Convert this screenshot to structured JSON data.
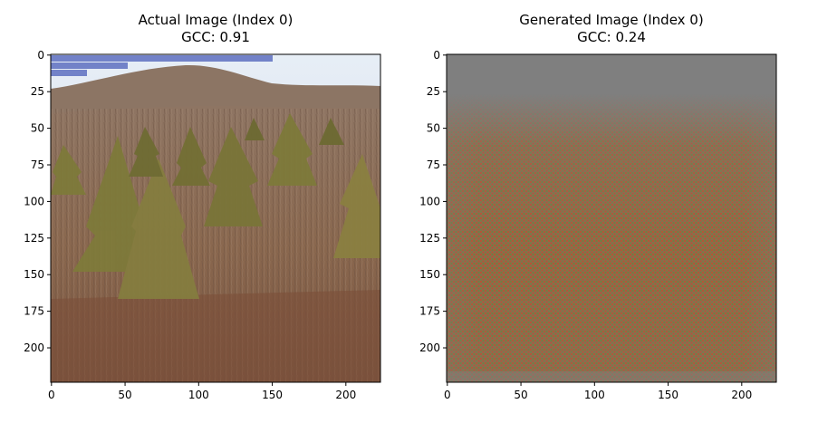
{
  "chart_data": [
    {
      "type": "image",
      "title": "Actual Image (Index 0)",
      "subtitle": "GCC: 0.91",
      "content": "forest photo",
      "x_ticks": [
        0,
        50,
        100,
        150,
        200
      ],
      "y_ticks": [
        0,
        25,
        50,
        75,
        100,
        125,
        150,
        175,
        200
      ],
      "xlim": [
        -0.5,
        223.5
      ],
      "ylim": [
        223.5,
        -0.5
      ],
      "colors": {
        "sky": "#dfe8f2",
        "hill": "#8a7060",
        "brush": "#8c6a52",
        "conifer": "#7d7a3a"
      }
    },
    {
      "type": "image",
      "title": "Generated Image (Index 0)",
      "subtitle": "GCC: 0.24",
      "content": "noise pattern",
      "x_ticks": [
        0,
        50,
        100,
        150,
        200
      ],
      "y_ticks": [
        0,
        25,
        50,
        75,
        100,
        125,
        150,
        175,
        200
      ],
      "xlim": [
        -0.5,
        223.5
      ],
      "ylim": [
        223.5,
        -0.5
      ],
      "colors": {
        "background": "#7f7f7f",
        "noise_red": "#b04a2a",
        "noise_green": "#6a7a35"
      }
    }
  ]
}
